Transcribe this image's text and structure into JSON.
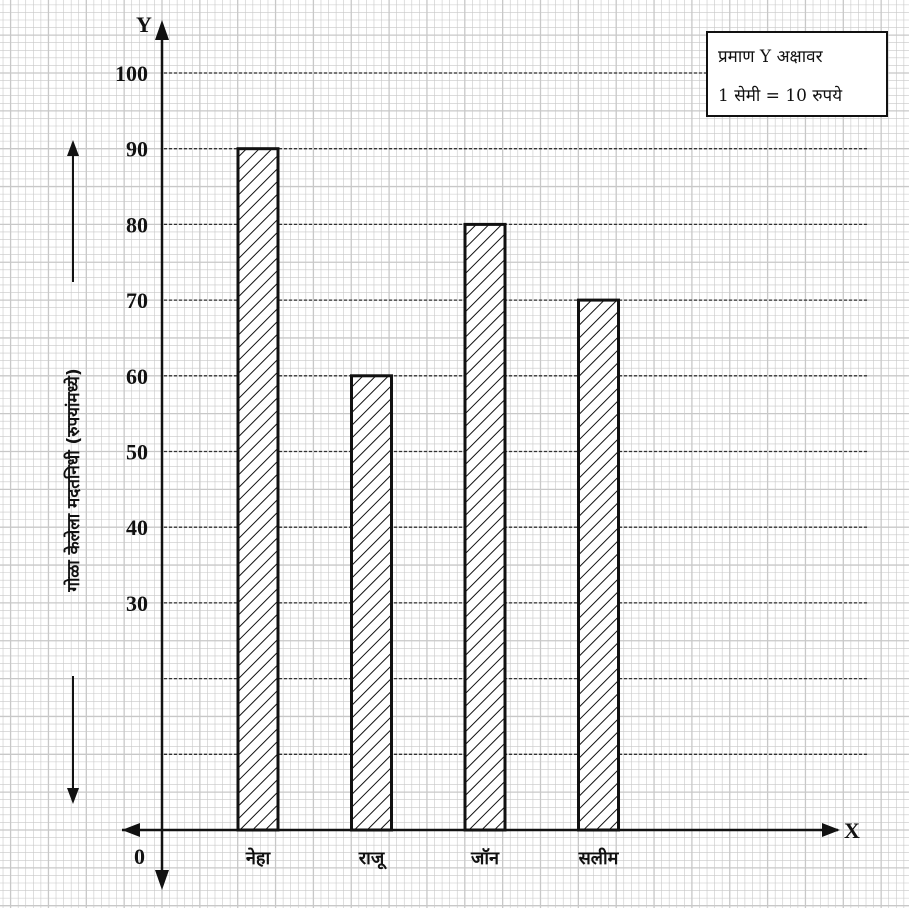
{
  "chart_data": {
    "type": "bar",
    "categories": [
      "नेहा",
      "राजू",
      "जॉन",
      "सलीम"
    ],
    "values": [
      90,
      60,
      80,
      70
    ],
    "ylabel": "गोळा केलेला मदतनिधी (रुपयांमध्ये)",
    "x_axis_letter": "X",
    "y_axis_letter": "Y",
    "origin_label": "0",
    "yticks": [
      30,
      40,
      50,
      60,
      70,
      80,
      90,
      100
    ],
    "ylim": [
      0,
      100
    ],
    "grid": true,
    "bar_fill": "diagonal hatch",
    "gridline_style": "dotted horizontal lines every 10"
  },
  "scale_note": {
    "line1": "प्रमाण Y अक्षावर",
    "line2": "1 सेमी = 10 रुपये"
  },
  "colors": {
    "grid": "#c8c8c8",
    "ink": "#111111"
  }
}
